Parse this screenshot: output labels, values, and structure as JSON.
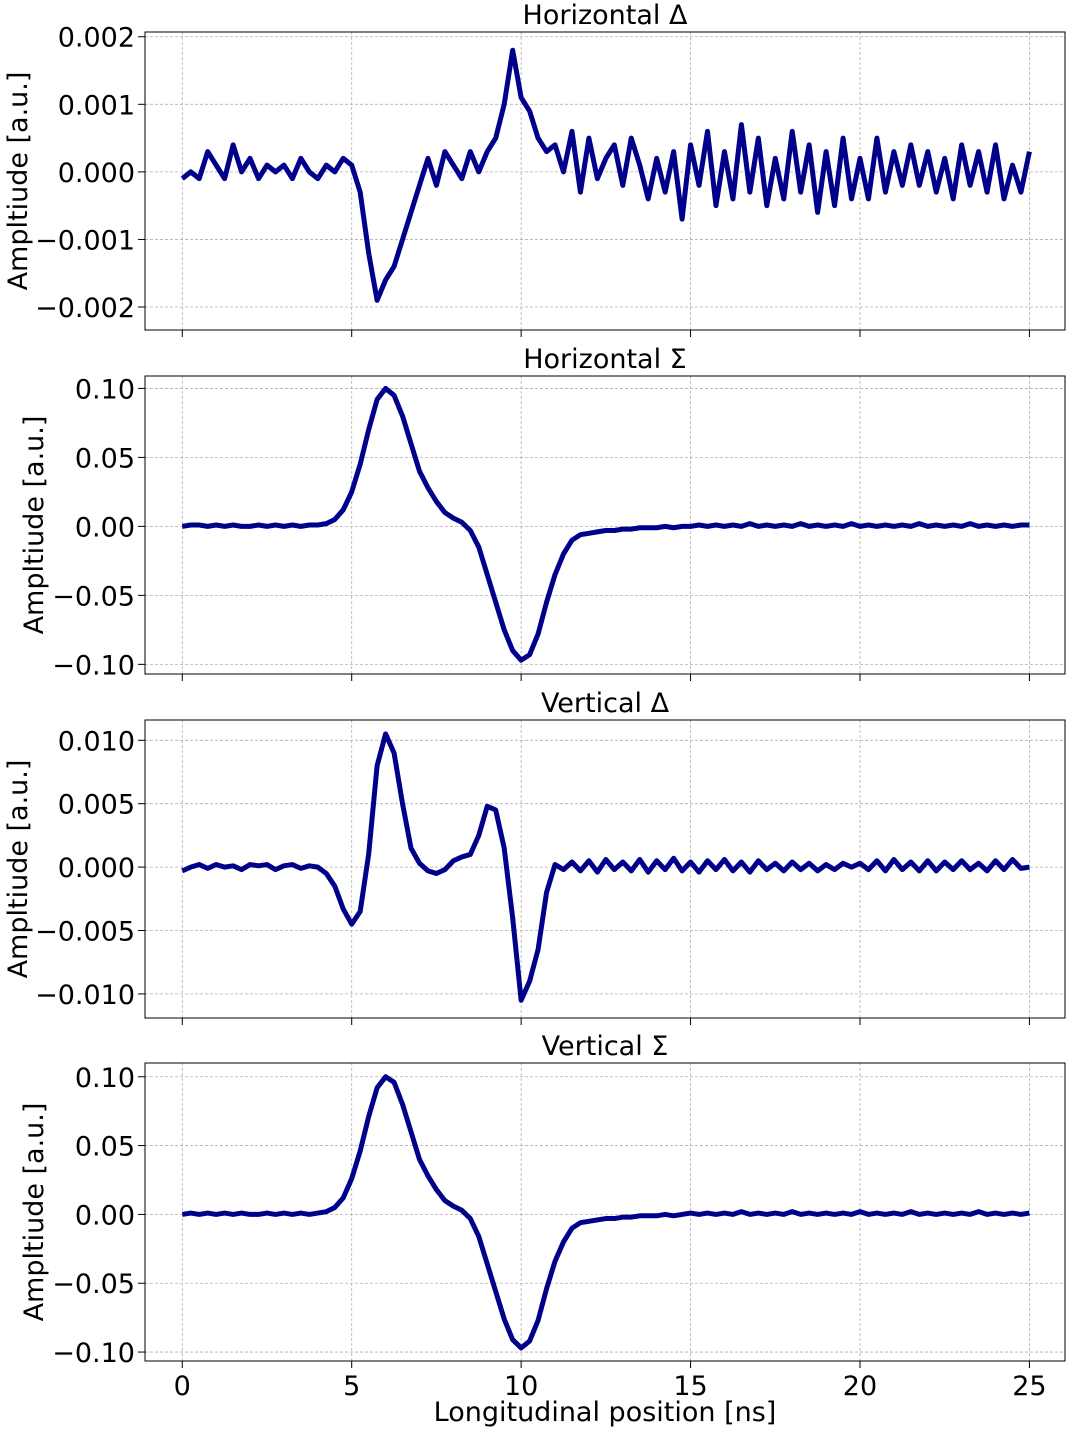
{
  "chart_data": [
    {
      "type": "line",
      "title": "Horizontal Δ",
      "ylabel": "Ampltiude [a.u.]",
      "x": [
        0,
        0.25,
        0.5,
        0.75,
        1,
        1.25,
        1.5,
        1.75,
        2,
        2.25,
        2.5,
        2.75,
        3,
        3.25,
        3.5,
        3.75,
        4,
        4.25,
        4.5,
        4.75,
        5,
        5.25,
        5.5,
        5.75,
        6,
        6.25,
        6.5,
        6.75,
        7,
        7.25,
        7.5,
        7.75,
        8,
        8.25,
        8.5,
        8.75,
        9,
        9.25,
        9.5,
        9.75,
        10,
        10.25,
        10.5,
        10.75,
        11,
        11.25,
        11.5,
        11.75,
        12,
        12.25,
        12.5,
        12.75,
        13,
        13.25,
        13.5,
        13.75,
        14,
        14.25,
        14.5,
        14.75,
        15,
        15.25,
        15.5,
        15.75,
        16,
        16.25,
        16.5,
        16.75,
        17,
        17.25,
        17.5,
        17.75,
        18,
        18.25,
        18.5,
        18.75,
        19,
        19.25,
        19.5,
        19.75,
        20,
        20.25,
        20.5,
        20.75,
        21,
        21.25,
        21.5,
        21.75,
        22,
        22.25,
        22.5,
        22.75,
        23,
        23.25,
        23.5,
        23.75,
        24,
        24.25,
        24.5,
        24.75,
        25
      ],
      "series": [
        {
          "name": "Horizontal Δ",
          "color": "#00008b",
          "values": [
            -0.0001,
            0,
            -0.0001,
            0.0003,
            0.0001,
            -0.0001,
            0.0004,
            0,
            0.0002,
            -0.0001,
            0.0001,
            0,
            0.0001,
            -0.0001,
            0.0002,
            0,
            -0.0001,
            0.0001,
            0,
            0.0002,
            0.0001,
            -0.0003,
            -0.0012,
            -0.0019,
            -0.0016,
            -0.0014,
            -0.001,
            -0.0006,
            -0.0002,
            0.0002,
            -0.0002,
            0.0003,
            0.0001,
            -0.0001,
            0.0003,
            0,
            0.0003,
            0.0005,
            0.001,
            0.0018,
            0.0011,
            0.0009,
            0.0005,
            0.0003,
            0.0004,
            0,
            0.0006,
            -0.0003,
            0.0005,
            -0.0001,
            0.0002,
            0.0004,
            -0.0002,
            0.0005,
            0.0001,
            -0.0004,
            0.0002,
            -0.0003,
            0.0003,
            -0.0007,
            0.0004,
            -0.0002,
            0.0006,
            -0.0005,
            0.0003,
            -0.0004,
            0.0007,
            -0.0003,
            0.0005,
            -0.0005,
            0.0002,
            -0.0004,
            0.0006,
            -0.0003,
            0.0004,
            -0.0006,
            0.0003,
            -0.0005,
            0.0005,
            -0.0004,
            0.0002,
            -0.0004,
            0.0005,
            -0.0003,
            0.0003,
            -0.0002,
            0.0004,
            -0.0002,
            0.0003,
            -0.0003,
            0.0002,
            -0.0004,
            0.0004,
            -0.0002,
            0.0003,
            -0.0003,
            0.0004,
            -0.0004,
            0.0001,
            -0.0003,
            0.0003
          ]
        }
      ],
      "xlim": [
        -1.1,
        26.05
      ],
      "xticks": [
        0,
        5,
        10,
        15,
        20,
        25
      ],
      "ylim": [
        -0.00234,
        0.00207
      ],
      "yticks": [
        {
          "value": -0.002,
          "label": "−0.002"
        },
        {
          "value": -0.001,
          "label": "−0.001"
        },
        {
          "value": 0,
          "label": "0.000"
        },
        {
          "value": 0.001,
          "label": "0.001"
        },
        {
          "value": 0.002,
          "label": "0.002"
        }
      ],
      "grid": true
    },
    {
      "type": "line",
      "title": "Horizontal Σ",
      "ylabel": "Ampltiude [a.u.]",
      "x": [
        0,
        0.25,
        0.5,
        0.75,
        1,
        1.25,
        1.5,
        1.75,
        2,
        2.25,
        2.5,
        2.75,
        3,
        3.25,
        3.5,
        3.75,
        4,
        4.25,
        4.5,
        4.75,
        5,
        5.25,
        5.5,
        5.75,
        6,
        6.25,
        6.5,
        6.75,
        7,
        7.25,
        7.5,
        7.75,
        8,
        8.25,
        8.5,
        8.75,
        9,
        9.25,
        9.5,
        9.75,
        10,
        10.25,
        10.5,
        10.75,
        11,
        11.25,
        11.5,
        11.75,
        12,
        12.25,
        12.5,
        12.75,
        13,
        13.25,
        13.5,
        13.75,
        14,
        14.25,
        14.5,
        14.75,
        15,
        15.25,
        15.5,
        15.75,
        16,
        16.25,
        16.5,
        16.75,
        17,
        17.25,
        17.5,
        17.75,
        18,
        18.25,
        18.5,
        18.75,
        19,
        19.25,
        19.5,
        19.75,
        20,
        20.25,
        20.5,
        20.75,
        21,
        21.25,
        21.5,
        21.75,
        22,
        22.25,
        22.5,
        22.75,
        23,
        23.25,
        23.5,
        23.75,
        24,
        24.25,
        24.5,
        24.75,
        25
      ],
      "series": [
        {
          "name": "Horizontal Σ",
          "color": "#00008b",
          "values": [
            0,
            0.001,
            0.001,
            0,
            0.001,
            0,
            0.001,
            0,
            0,
            0.001,
            0,
            0.001,
            0,
            0.001,
            0,
            0.001,
            0.001,
            0.002,
            0.005,
            0.012,
            0.025,
            0.045,
            0.07,
            0.092,
            0.1,
            0.095,
            0.08,
            0.06,
            0.04,
            0.028,
            0.018,
            0.01,
            0.006,
            0.003,
            -0.003,
            -0.015,
            -0.035,
            -0.055,
            -0.075,
            -0.09,
            -0.097,
            -0.093,
            -0.078,
            -0.055,
            -0.035,
            -0.02,
            -0.01,
            -0.006,
            -0.005,
            -0.004,
            -0.003,
            -0.003,
            -0.002,
            -0.002,
            -0.001,
            -0.001,
            -0.001,
            0,
            -0.001,
            0,
            0,
            0.001,
            0,
            0.001,
            0,
            0.001,
            0,
            0.002,
            0,
            0.001,
            0,
            0.001,
            0,
            0.002,
            0,
            0.001,
            0,
            0.001,
            0,
            0.002,
            0,
            0.001,
            0,
            0.001,
            0,
            0.001,
            0,
            0.002,
            0,
            0.001,
            0,
            0.001,
            0,
            0.002,
            0,
            0.001,
            0,
            0.001,
            0,
            0.001,
            0.001
          ]
        }
      ],
      "xlim": [
        -1.1,
        26.05
      ],
      "xticks": [
        0,
        5,
        10,
        15,
        20,
        25
      ],
      "ylim": [
        -0.107,
        0.109
      ],
      "yticks": [
        {
          "value": -0.1,
          "label": "−0.10"
        },
        {
          "value": -0.05,
          "label": "−0.05"
        },
        {
          "value": 0,
          "label": "0.00"
        },
        {
          "value": 0.05,
          "label": "0.05"
        },
        {
          "value": 0.1,
          "label": "0.10"
        }
      ],
      "grid": true
    },
    {
      "type": "line",
      "title": "Vertical Δ",
      "ylabel": "Ampltiude [a.u.]",
      "x": [
        0,
        0.25,
        0.5,
        0.75,
        1,
        1.25,
        1.5,
        1.75,
        2,
        2.25,
        2.5,
        2.75,
        3,
        3.25,
        3.5,
        3.75,
        4,
        4.25,
        4.5,
        4.75,
        5,
        5.25,
        5.5,
        5.75,
        6,
        6.25,
        6.5,
        6.75,
        7,
        7.25,
        7.5,
        7.75,
        8,
        8.25,
        8.5,
        8.75,
        9,
        9.25,
        9.5,
        9.75,
        10,
        10.25,
        10.5,
        10.75,
        11,
        11.25,
        11.5,
        11.75,
        12,
        12.25,
        12.5,
        12.75,
        13,
        13.25,
        13.5,
        13.75,
        14,
        14.25,
        14.5,
        14.75,
        15,
        15.25,
        15.5,
        15.75,
        16,
        16.25,
        16.5,
        16.75,
        17,
        17.25,
        17.5,
        17.75,
        18,
        18.25,
        18.5,
        18.75,
        19,
        19.25,
        19.5,
        19.75,
        20,
        20.25,
        20.5,
        20.75,
        21,
        21.25,
        21.5,
        21.75,
        22,
        22.25,
        22.5,
        22.75,
        23,
        23.25,
        23.5,
        23.75,
        24,
        24.25,
        24.5,
        24.75,
        25
      ],
      "series": [
        {
          "name": "Vertical Δ",
          "color": "#00008b",
          "values": [
            -0.0003,
            0,
            0.0002,
            -0.0001,
            0.0002,
            0,
            0.0001,
            -0.0002,
            0.0002,
            0.0001,
            0.0002,
            -0.0002,
            0.0001,
            0.0002,
            -0.0001,
            0.0001,
            0,
            -0.0005,
            -0.0015,
            -0.0033,
            -0.0045,
            -0.0035,
            0.001,
            0.008,
            0.0105,
            0.009,
            0.005,
            0.0015,
            0.0003,
            -0.0003,
            -0.0005,
            -0.0002,
            0.0005,
            0.0008,
            0.001,
            0.0025,
            0.0048,
            0.0045,
            0.0015,
            -0.004,
            -0.0105,
            -0.009,
            -0.0065,
            -0.002,
            0.0002,
            -0.0002,
            0.0004,
            -0.0003,
            0.0005,
            -0.0004,
            0.0006,
            -0.0002,
            0.0004,
            -0.0003,
            0.0006,
            -0.0004,
            0.0005,
            -0.0002,
            0.0007,
            -0.0003,
            0.0004,
            -0.0004,
            0.0005,
            -0.0002,
            0.0006,
            -0.0003,
            0.0004,
            -0.0004,
            0.0005,
            -0.0002,
            0.0003,
            -0.0003,
            0.0004,
            -0.0002,
            0.0003,
            -0.0003,
            0.0002,
            -0.0002,
            0.0003,
            0,
            0.0003,
            -0.0002,
            0.0005,
            -0.0003,
            0.0006,
            -0.0002,
            0.0004,
            -0.0003,
            0.0005,
            -0.0003,
            0.0004,
            -0.0002,
            0.0005,
            -0.0002,
            0.0003,
            -0.0003,
            0.0005,
            -0.0002,
            0.0006,
            -0.0001,
            0
          ]
        }
      ],
      "xlim": [
        -1.1,
        26.05
      ],
      "xticks": [
        0,
        5,
        10,
        15,
        20,
        25
      ],
      "ylim": [
        -0.0119,
        0.0116
      ],
      "yticks": [
        {
          "value": -0.01,
          "label": "−0.010"
        },
        {
          "value": -0.005,
          "label": "−0.005"
        },
        {
          "value": 0,
          "label": "0.000"
        },
        {
          "value": 0.005,
          "label": "0.005"
        },
        {
          "value": 0.01,
          "label": "0.010"
        }
      ],
      "grid": true
    },
    {
      "type": "line",
      "title": "Vertical Σ",
      "ylabel": "Ampltiude [a.u.]",
      "xlabel": "Longitudinal position [ns]",
      "x": [
        0,
        0.25,
        0.5,
        0.75,
        1,
        1.25,
        1.5,
        1.75,
        2,
        2.25,
        2.5,
        2.75,
        3,
        3.25,
        3.5,
        3.75,
        4,
        4.25,
        4.5,
        4.75,
        5,
        5.25,
        5.5,
        5.75,
        6,
        6.25,
        6.5,
        6.75,
        7,
        7.25,
        7.5,
        7.75,
        8,
        8.25,
        8.5,
        8.75,
        9,
        9.25,
        9.5,
        9.75,
        10,
        10.25,
        10.5,
        10.75,
        11,
        11.25,
        11.5,
        11.75,
        12,
        12.25,
        12.5,
        12.75,
        13,
        13.25,
        13.5,
        13.75,
        14,
        14.25,
        14.5,
        14.75,
        15,
        15.25,
        15.5,
        15.75,
        16,
        16.25,
        16.5,
        16.75,
        17,
        17.25,
        17.5,
        17.75,
        18,
        18.25,
        18.5,
        18.75,
        19,
        19.25,
        19.5,
        19.75,
        20,
        20.25,
        20.5,
        20.75,
        21,
        21.25,
        21.5,
        21.75,
        22,
        22.25,
        22.5,
        22.75,
        23,
        23.25,
        23.5,
        23.75,
        24,
        24.25,
        24.5,
        24.75,
        25
      ],
      "series": [
        {
          "name": "Vertical Σ",
          "color": "#00008b",
          "values": [
            0,
            0.001,
            0,
            0.001,
            0,
            0.001,
            0,
            0.001,
            0,
            0,
            0.001,
            0,
            0.001,
            0,
            0.001,
            0,
            0.001,
            0.002,
            0.005,
            0.012,
            0.026,
            0.046,
            0.071,
            0.092,
            0.1,
            0.096,
            0.08,
            0.06,
            0.04,
            0.028,
            0.018,
            0.01,
            0.006,
            0.003,
            -0.003,
            -0.016,
            -0.036,
            -0.056,
            -0.076,
            -0.091,
            -0.097,
            -0.092,
            -0.077,
            -0.054,
            -0.034,
            -0.02,
            -0.01,
            -0.006,
            -0.005,
            -0.004,
            -0.003,
            -0.003,
            -0.002,
            -0.002,
            -0.001,
            -0.001,
            -0.001,
            0,
            -0.001,
            0,
            0.001,
            0,
            0.001,
            0,
            0.001,
            0,
            0.002,
            0,
            0.001,
            0,
            0.001,
            0,
            0.002,
            0,
            0.001,
            0,
            0.001,
            0,
            0.001,
            0,
            0.002,
            0,
            0.001,
            0,
            0.001,
            0,
            0.002,
            0,
            0.001,
            0,
            0.001,
            0,
            0.001,
            0,
            0.002,
            0,
            0.001,
            0,
            0.001,
            0,
            0.001
          ]
        }
      ],
      "xlim": [
        -1.1,
        26.05
      ],
      "xticks": [
        0,
        5,
        10,
        15,
        20,
        25
      ],
      "ylim": [
        -0.1065,
        0.11
      ],
      "yticks": [
        {
          "value": -0.1,
          "label": "−0.10"
        },
        {
          "value": -0.05,
          "label": "−0.05"
        },
        {
          "value": 0,
          "label": "0.00"
        },
        {
          "value": 0.05,
          "label": "0.05"
        },
        {
          "value": 0.1,
          "label": "0.10"
        }
      ],
      "grid": true
    }
  ]
}
